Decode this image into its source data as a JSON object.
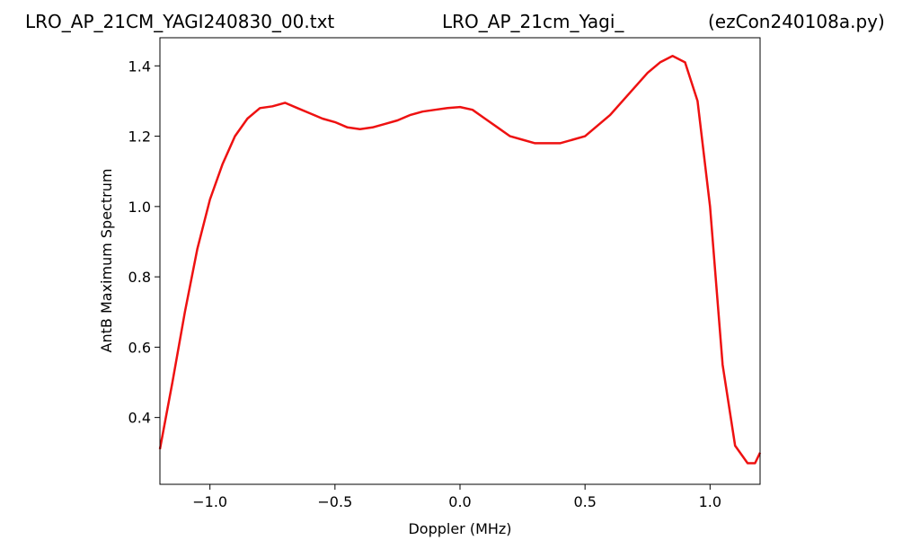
{
  "chart_data": {
    "type": "line",
    "title_parts": [
      "LRO_AP_21CM_YAGI240830_00.txt",
      "LRO_AP_21cm_Yagi_",
      "(ezCon240108a.py)"
    ],
    "xlabel": "Doppler (MHz)",
    "ylabel": "AntB Maximum Spectrum",
    "xlim": [
      -1.2,
      1.2
    ],
    "ylim": [
      0.21,
      1.48
    ],
    "xticks": [
      -1.0,
      -0.5,
      0.0,
      0.5,
      1.0
    ],
    "xtick_labels": [
      "−1.0",
      "−0.5",
      "0.0",
      "0.5",
      "1.0"
    ],
    "yticks": [
      0.4,
      0.6,
      0.8,
      1.0,
      1.2,
      1.4
    ],
    "ytick_labels": [
      "0.4",
      "0.6",
      "0.8",
      "1.0",
      "1.2",
      "1.4"
    ],
    "grid": false,
    "line_color": "#ee1111",
    "series": [
      {
        "x": [
          -1.2,
          -1.15,
          -1.1,
          -1.05,
          -1.0,
          -0.95,
          -0.9,
          -0.85,
          -0.8,
          -0.75,
          -0.7,
          -0.65,
          -0.6,
          -0.55,
          -0.5,
          -0.45,
          -0.4,
          -0.35,
          -0.3,
          -0.25,
          -0.2,
          -0.15,
          -0.1,
          -0.05,
          0.0,
          0.05,
          0.1,
          0.15,
          0.2,
          0.25,
          0.3,
          0.35,
          0.4,
          0.45,
          0.5,
          0.55,
          0.6,
          0.65,
          0.7,
          0.75,
          0.8,
          0.85,
          0.9,
          0.95,
          1.0,
          1.05,
          1.1,
          1.15,
          1.18,
          1.2
        ],
        "y": [
          0.31,
          0.5,
          0.7,
          0.88,
          1.02,
          1.12,
          1.2,
          1.25,
          1.28,
          1.285,
          1.295,
          1.28,
          1.265,
          1.25,
          1.24,
          1.225,
          1.22,
          1.225,
          1.235,
          1.245,
          1.26,
          1.27,
          1.275,
          1.28,
          1.283,
          1.275,
          1.25,
          1.225,
          1.2,
          1.19,
          1.18,
          1.18,
          1.18,
          1.19,
          1.2,
          1.23,
          1.26,
          1.3,
          1.34,
          1.38,
          1.41,
          1.428,
          1.41,
          1.3,
          1.0,
          0.55,
          0.32,
          0.27,
          0.27,
          0.3
        ]
      }
    ]
  }
}
